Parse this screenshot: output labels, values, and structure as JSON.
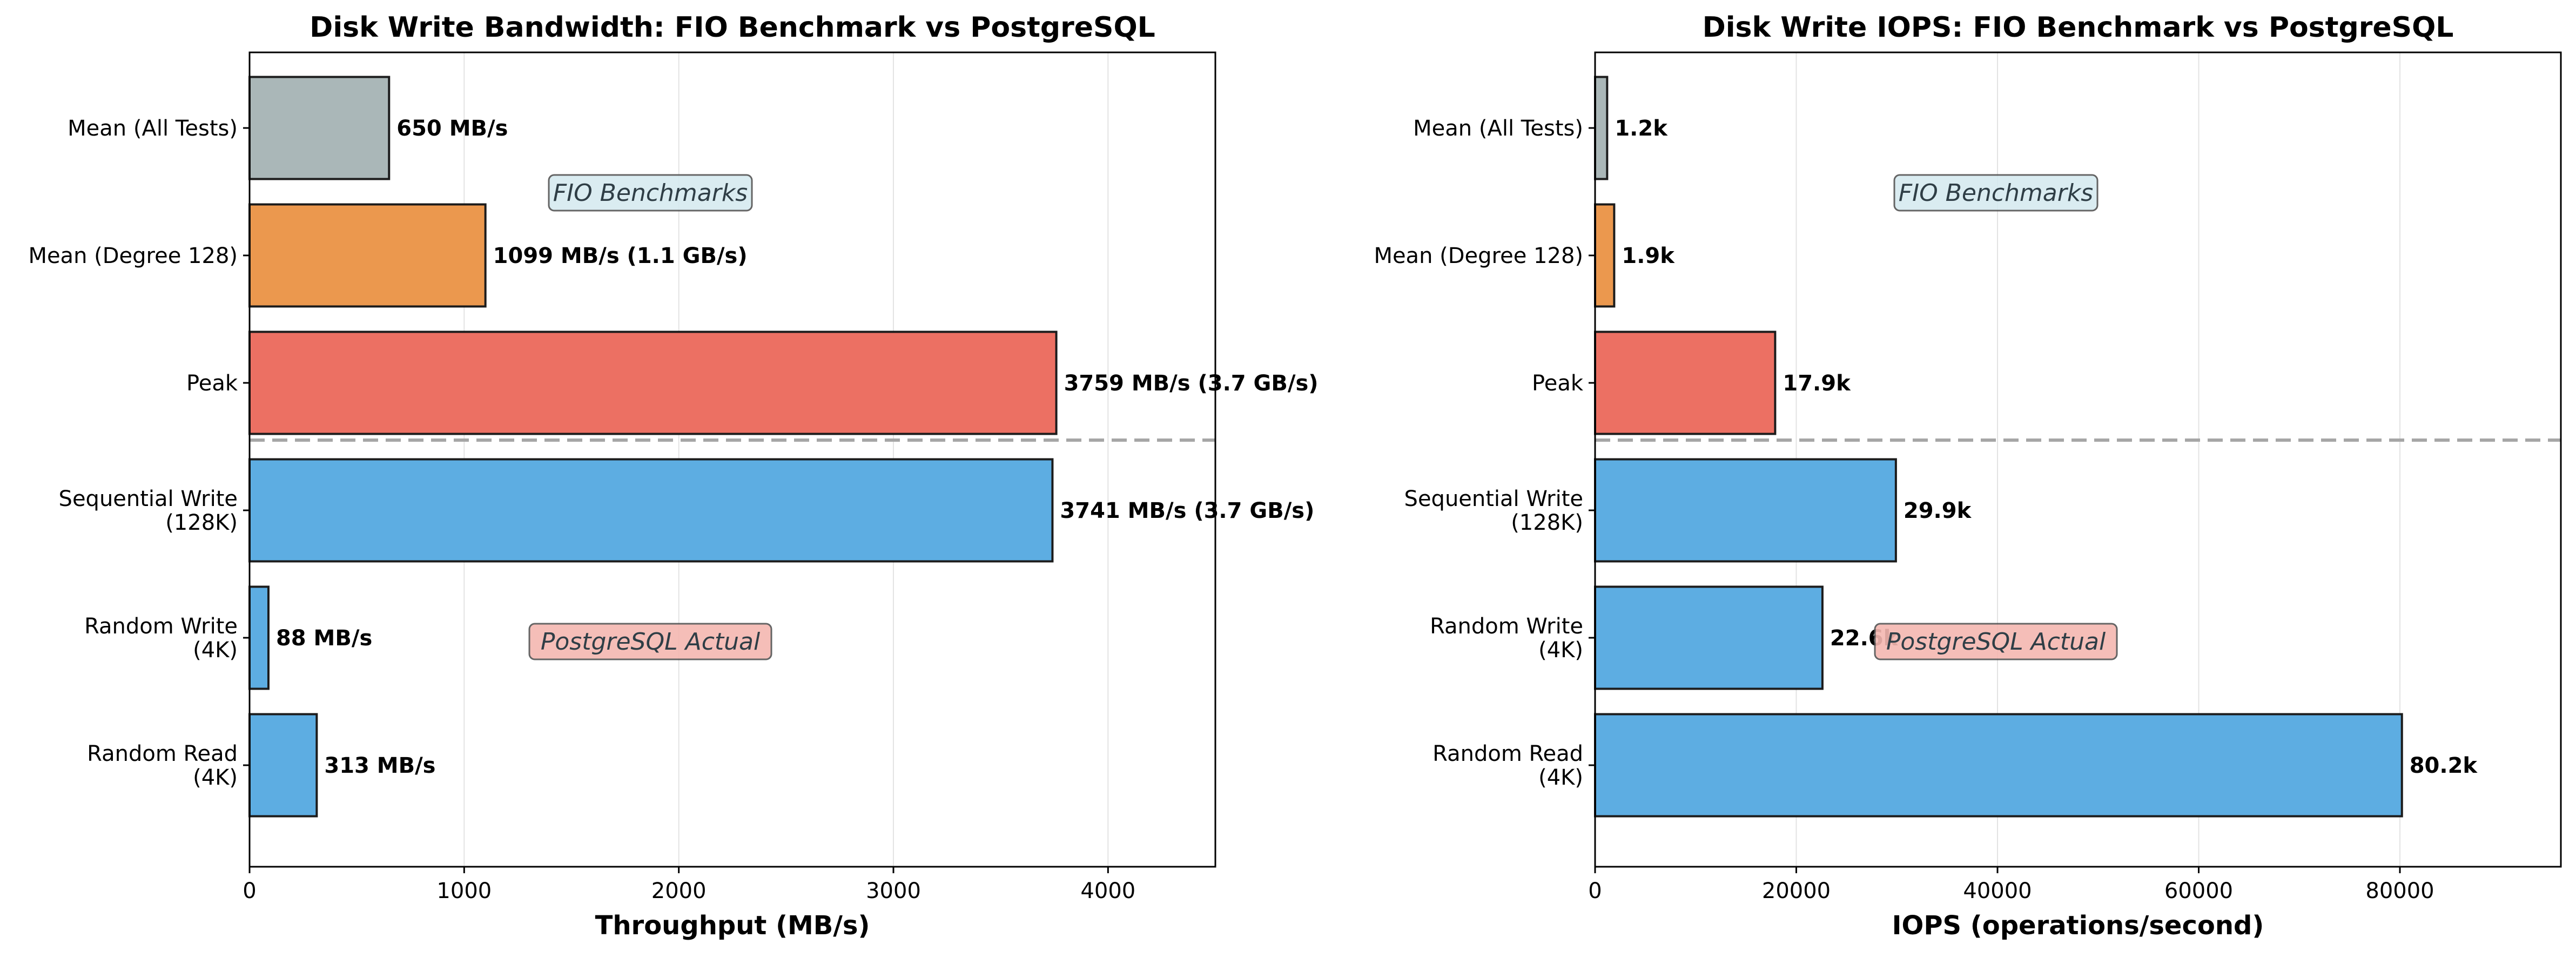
{
  "chart_data": [
    {
      "type": "bar",
      "orientation": "horizontal",
      "title": "Disk Write Bandwidth: FIO Benchmark vs PostgreSQL",
      "xlabel": "Throughput (MB/s)",
      "ylabel": "",
      "xlim": [
        0,
        4500
      ],
      "xticks": [
        0,
        1000,
        2000,
        3000,
        4000
      ],
      "grid": "vertical",
      "categories": [
        "Mean (All Tests)",
        "Mean (Degree 128)",
        "Peak",
        "Sequential Write\n(128K)",
        "Random Write\n(4K)",
        "Random Read\n(4K)"
      ],
      "values": [
        650,
        1099,
        3759,
        3741,
        88,
        313
      ],
      "value_labels": [
        "650 MB/s",
        "1099 MB/s (1.1 GB/s)",
        "3759 MB/s (3.7 GB/s)",
        "3741 MB/s (3.7 GB/s)",
        "88 MB/s",
        "313 MB/s"
      ],
      "bar_colors": [
        "#aab7b8",
        "#eb984e",
        "#ec7063",
        "#5dade2",
        "#5dade2",
        "#5dade2"
      ],
      "annotations": [
        {
          "text": "FIO Benchmarks",
          "group": "FIO",
          "bg": "#d6eaf0"
        },
        {
          "text": "PostgreSQL Actual",
          "group": "PostgreSQL",
          "bg": "#f5b7b1"
        }
      ],
      "separator": "dashed line between Peak and Sequential Write (128K)"
    },
    {
      "type": "bar",
      "orientation": "horizontal",
      "title": "Disk Write IOPS: FIO Benchmark vs PostgreSQL",
      "xlabel": "IOPS (operations/second)",
      "ylabel": "",
      "xlim": [
        0,
        96000
      ],
      "xticks": [
        0,
        20000,
        40000,
        60000,
        80000
      ],
      "grid": "vertical",
      "categories": [
        "Mean (All Tests)",
        "Mean (Degree 128)",
        "Peak",
        "Sequential Write\n(128K)",
        "Random Write\n(4K)",
        "Random Read\n(4K)"
      ],
      "values": [
        1200,
        1900,
        17900,
        29900,
        22600,
        80200
      ],
      "value_labels": [
        "1.2k",
        "1.9k",
        "17.9k",
        "29.9k",
        "22.6k",
        "80.2k"
      ],
      "bar_colors": [
        "#aab7b8",
        "#eb984e",
        "#ec7063",
        "#5dade2",
        "#5dade2",
        "#5dade2"
      ],
      "annotations": [
        {
          "text": "FIO Benchmarks",
          "group": "FIO",
          "bg": "#d6eaf0"
        },
        {
          "text": "PostgreSQL Actual",
          "group": "PostgreSQL",
          "bg": "#f5b7b1"
        }
      ],
      "separator": "dashed line between Peak and Sequential Write (128K)"
    }
  ]
}
